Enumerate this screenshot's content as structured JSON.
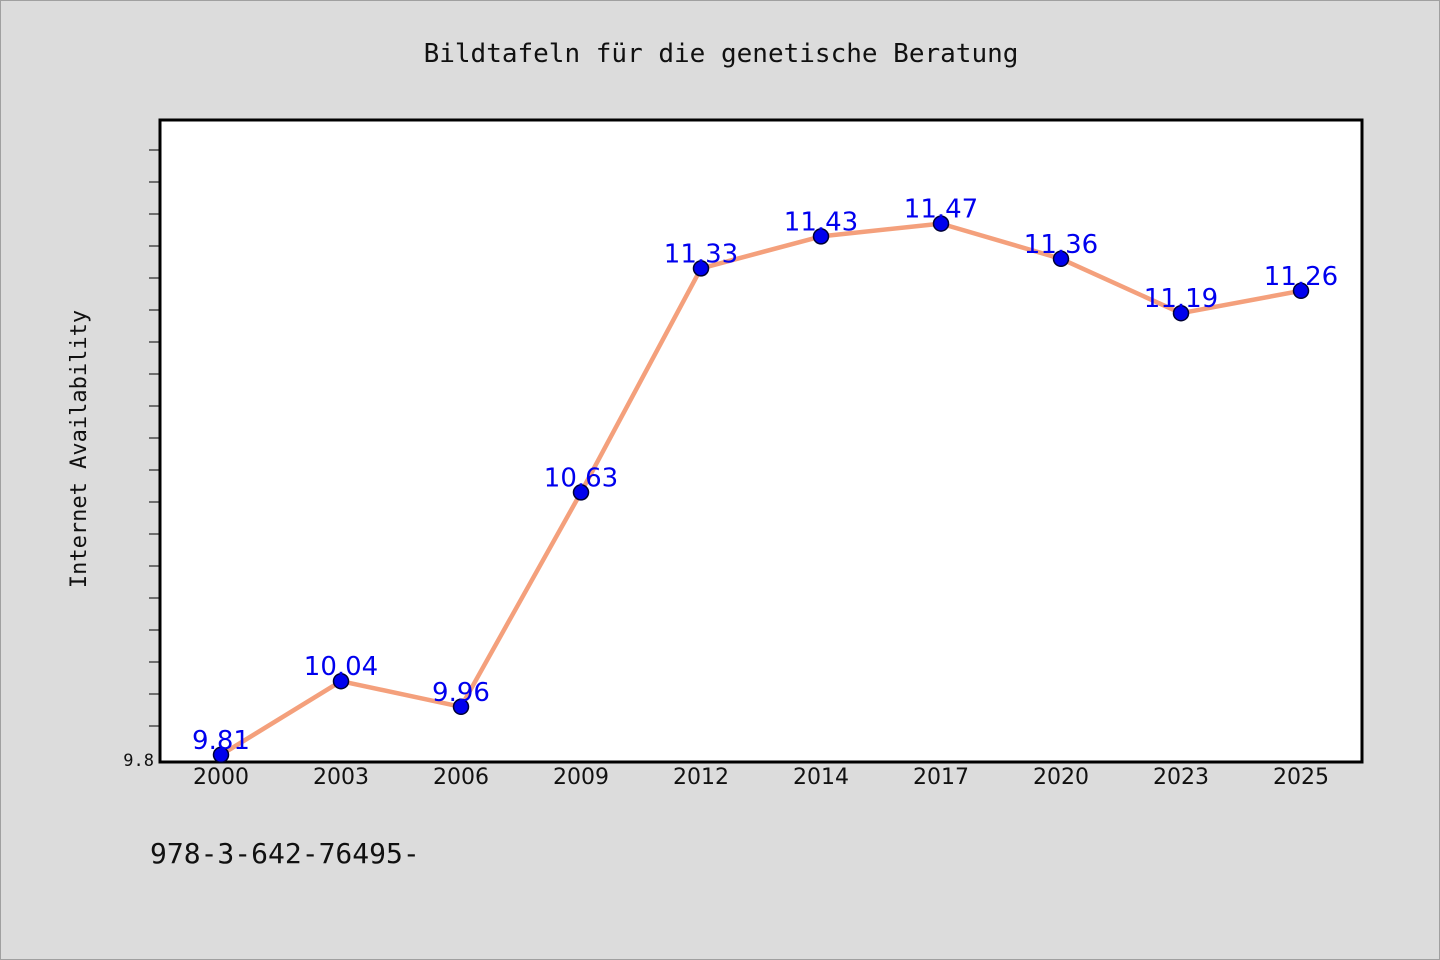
{
  "chart_data": {
    "type": "line",
    "title": "Bildtafeln für die genetische Beratung",
    "xlabel": "",
    "ylabel": "Internet Availability",
    "categories": [
      "2000",
      "2003",
      "2006",
      "2009",
      "2012",
      "2014",
      "2017",
      "2020",
      "2023",
      "2025"
    ],
    "series": [
      {
        "values": [
          9.81,
          10.04,
          9.96,
          10.63,
          11.33,
          11.43,
          11.47,
          11.36,
          11.19,
          11.26
        ]
      }
    ],
    "ylim": [
      9.8,
      11.8
    ],
    "yticks_labeled": [
      9.8
    ],
    "y_minor_tick_step": 0.1,
    "data_labels": [
      "9.81",
      "10.04",
      "9.96",
      "10.63",
      "11.33",
      "11.43",
      "11.47",
      "11.36",
      "11.19",
      "11.26"
    ],
    "grid": false,
    "legend": "none",
    "colors": {
      "line": "#f4a07c",
      "marker": "#0000ee",
      "label": "#0000ee",
      "plot_background": "#ffffff",
      "figure_background": "#dcdcdc"
    }
  },
  "footer_text": "978-3-642-76495-"
}
